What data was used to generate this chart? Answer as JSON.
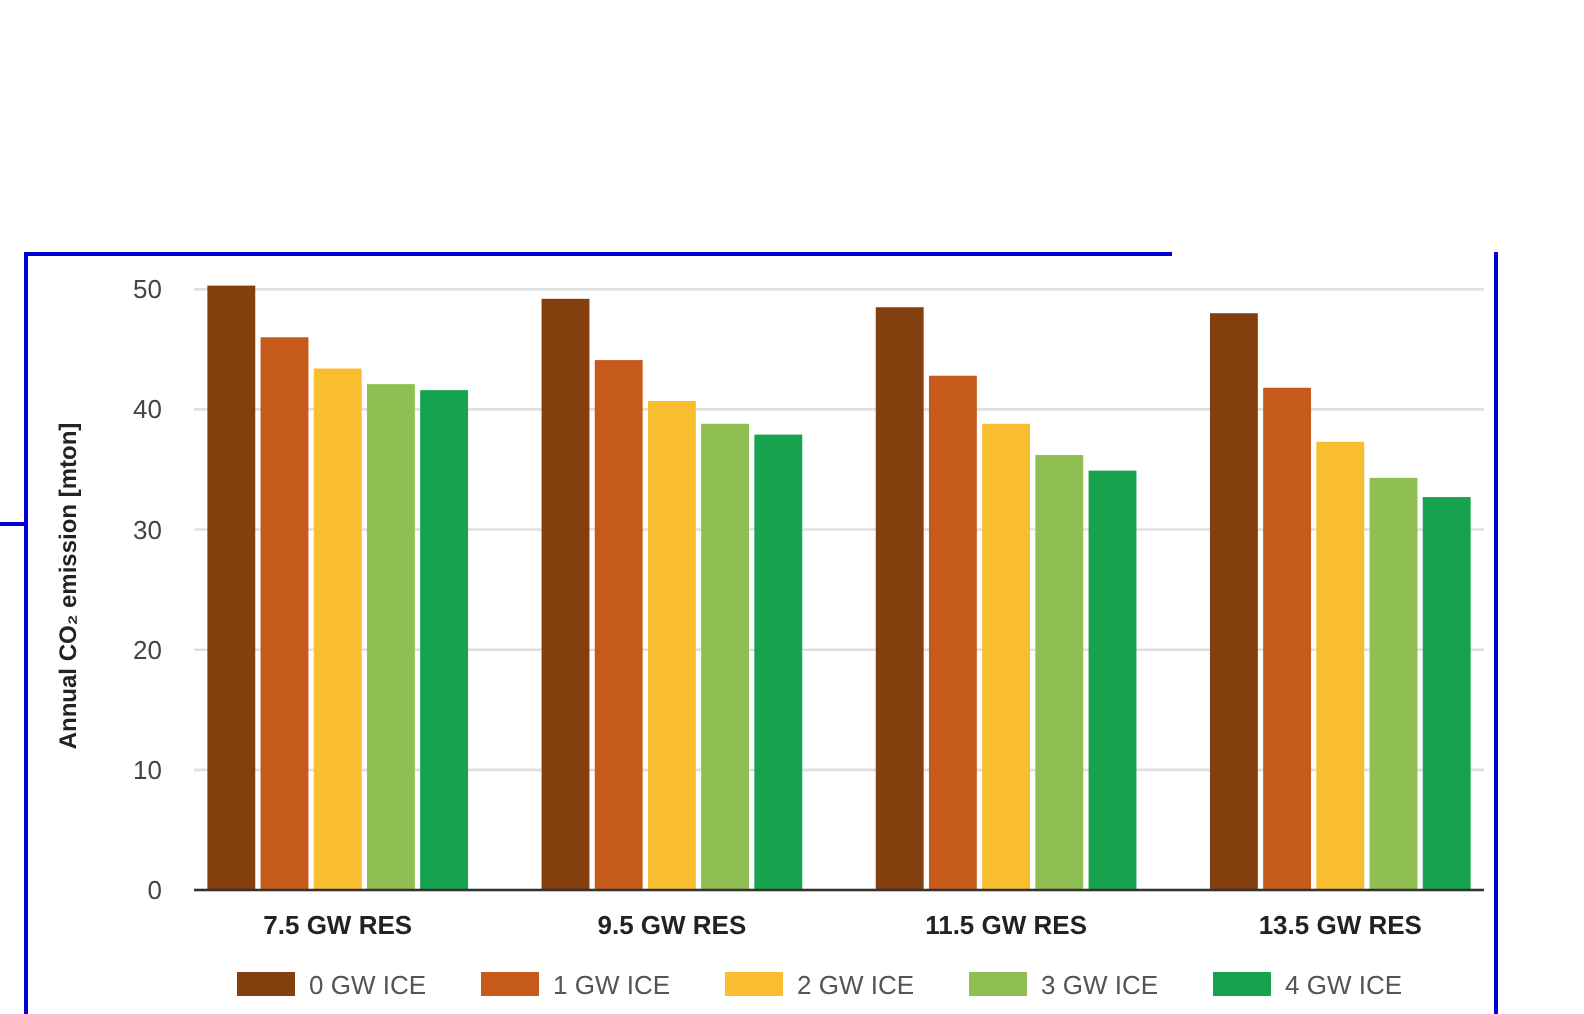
{
  "chart_data": {
    "type": "bar",
    "ylabel": "Annual CO₂ emission [mton]",
    "categories": [
      "7.5 GW RES",
      "9.5 GW RES",
      "11.5 GW RES",
      "13.5 GW RES"
    ],
    "series": [
      {
        "name": "0 GW ICE",
        "color": "#843f0f",
        "values": [
          50.3,
          49.2,
          48.5,
          48.0
        ]
      },
      {
        "name": "1 GW ICE",
        "color": "#c55a1b",
        "values": [
          46.0,
          44.1,
          42.8,
          41.8
        ]
      },
      {
        "name": "2 GW ICE",
        "color": "#f9bd30",
        "values": [
          43.4,
          40.7,
          38.8,
          37.3
        ]
      },
      {
        "name": "3 GW ICE",
        "color": "#8fbf52",
        "values": [
          42.1,
          38.8,
          36.2,
          34.3
        ]
      },
      {
        "name": "4 GW ICE",
        "color": "#17a34d",
        "values": [
          41.6,
          37.9,
          34.9,
          32.7
        ]
      }
    ],
    "ylim": [
      0,
      50.6
    ],
    "yticks": [
      0,
      10,
      20,
      30,
      40,
      50
    ],
    "grid": "y",
    "legend": "bottom"
  }
}
